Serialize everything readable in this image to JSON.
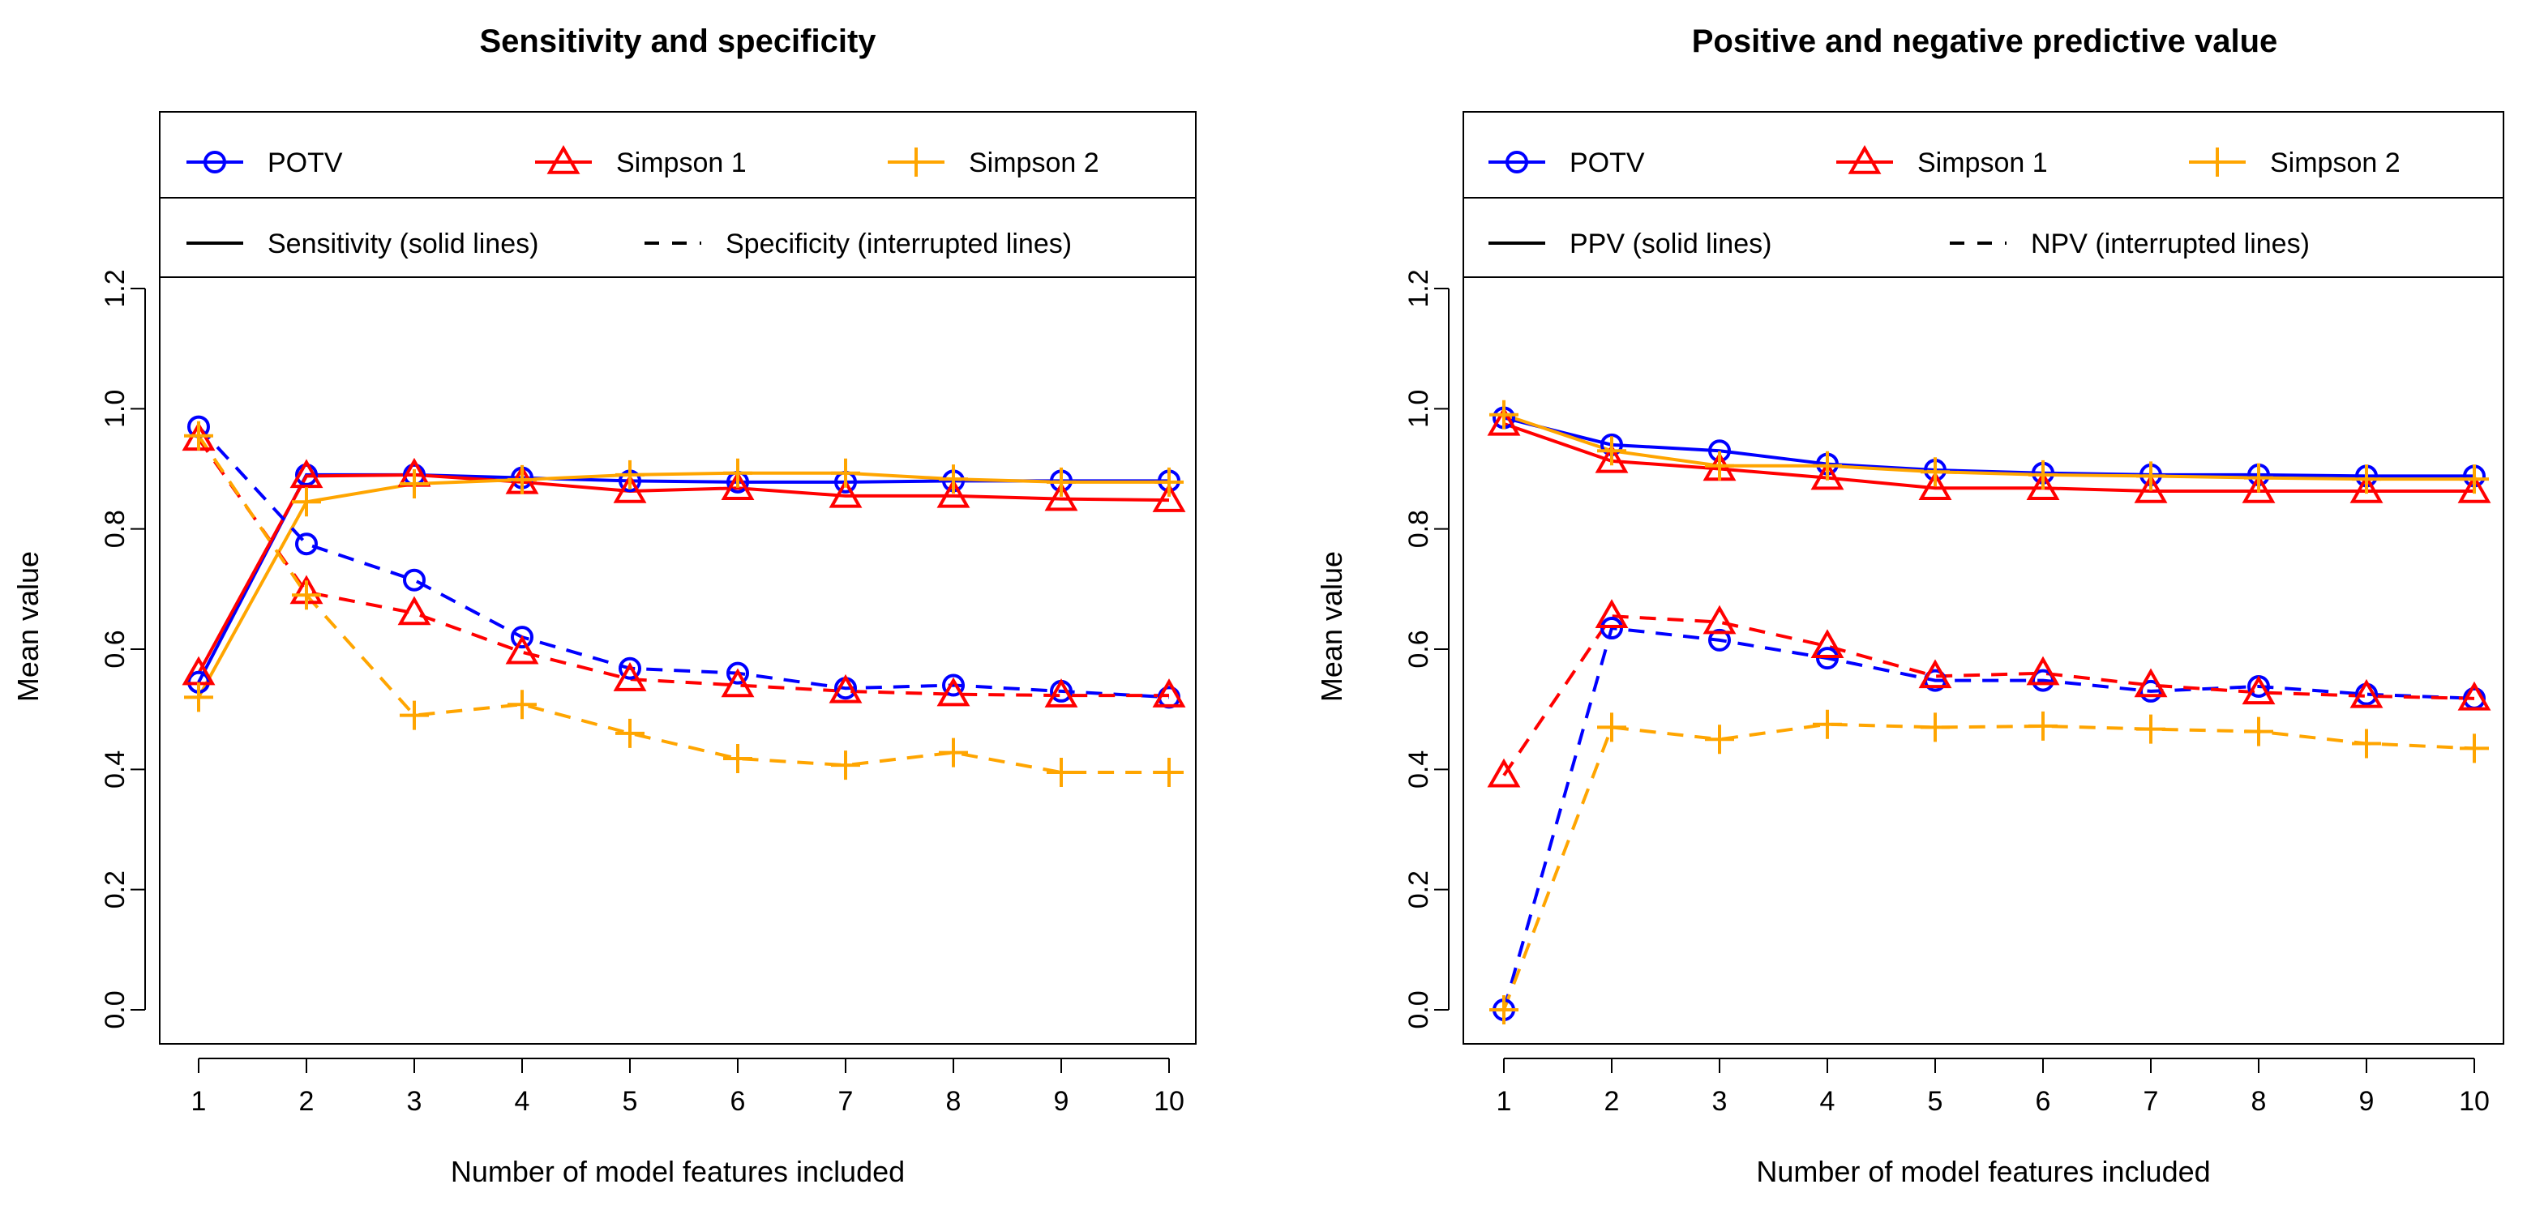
{
  "colors": {
    "potv": "#0000FF",
    "simpson1": "#FF0000",
    "simpson2": "#FFA500",
    "axis": "#000000"
  },
  "chart_data": [
    {
      "type": "line",
      "title": "Sensitivity and specificity",
      "xlabel": "Number of model features included",
      "ylabel": "Mean value",
      "x": [
        1,
        2,
        3,
        4,
        5,
        6,
        7,
        8,
        9,
        10
      ],
      "xlim": [
        1,
        10
      ],
      "ylim": [
        0,
        1.2
      ],
      "yticks": [
        "0.0",
        "0.2",
        "0.4",
        "0.6",
        "0.8",
        "1.0",
        "1.2"
      ],
      "legend": {
        "placement": "top",
        "series_labels": [
          "POTV",
          "Simpson 1",
          "Simpson 2"
        ],
        "linetype_labels": [
          "Sensitivity (solid lines)",
          "Specificity (interrupted lines)"
        ]
      },
      "series": [
        {
          "name": "POTV",
          "measure": "Sensitivity",
          "line": "solid",
          "marker": "circle",
          "color": "#0000FF",
          "values": [
            0.545,
            0.89,
            0.89,
            0.885,
            0.88,
            0.878,
            0.878,
            0.88,
            0.88,
            0.88
          ]
        },
        {
          "name": "Simpson 1",
          "measure": "Sensitivity",
          "line": "solid",
          "marker": "triangle",
          "color": "#FF0000",
          "values": [
            0.56,
            0.888,
            0.89,
            0.878,
            0.863,
            0.868,
            0.855,
            0.855,
            0.85,
            0.848
          ]
        },
        {
          "name": "Simpson 2",
          "measure": "Sensitivity",
          "line": "solid",
          "marker": "plus",
          "color": "#FFA500",
          "values": [
            0.52,
            0.845,
            0.875,
            0.882,
            0.89,
            0.893,
            0.893,
            0.883,
            0.878,
            0.878
          ]
        },
        {
          "name": "POTV",
          "measure": "Specificity",
          "line": "dashed",
          "marker": "circle",
          "color": "#0000FF",
          "values": [
            0.97,
            0.775,
            0.715,
            0.62,
            0.568,
            0.56,
            0.535,
            0.54,
            0.53,
            0.52
          ]
        },
        {
          "name": "Simpson 1",
          "measure": "Specificity",
          "line": "dashed",
          "marker": "triangle",
          "color": "#FF0000",
          "values": [
            0.95,
            0.695,
            0.66,
            0.595,
            0.55,
            0.54,
            0.53,
            0.525,
            0.523,
            0.523
          ]
        },
        {
          "name": "Simpson 2",
          "measure": "Specificity",
          "line": "dashed",
          "marker": "plus",
          "color": "#FFA500",
          "values": [
            0.955,
            0.69,
            0.49,
            0.508,
            0.46,
            0.418,
            0.407,
            0.428,
            0.395,
            0.395
          ]
        }
      ]
    },
    {
      "type": "line",
      "title": "Positive and negative predictive value",
      "xlabel": "Number of model features included",
      "ylabel": "Mean value",
      "x": [
        1,
        2,
        3,
        4,
        5,
        6,
        7,
        8,
        9,
        10
      ],
      "xlim": [
        1,
        10
      ],
      "ylim": [
        0,
        1.2
      ],
      "yticks": [
        "0.0",
        "0.2",
        "0.4",
        "0.6",
        "0.8",
        "1.0",
        "1.2"
      ],
      "legend": {
        "placement": "top",
        "series_labels": [
          "POTV",
          "Simpson 1",
          "Simpson 2"
        ],
        "linetype_labels": [
          "PPV (solid lines)",
          "NPV (interrupted lines)"
        ]
      },
      "series": [
        {
          "name": "POTV",
          "measure": "PPV",
          "line": "solid",
          "marker": "circle",
          "color": "#0000FF",
          "values": [
            0.985,
            0.94,
            0.93,
            0.908,
            0.898,
            0.893,
            0.89,
            0.89,
            0.888,
            0.888
          ]
        },
        {
          "name": "Simpson 1",
          "measure": "PPV",
          "line": "solid",
          "marker": "triangle",
          "color": "#FF0000",
          "values": [
            0.975,
            0.913,
            0.9,
            0.885,
            0.868,
            0.868,
            0.863,
            0.863,
            0.863,
            0.863
          ]
        },
        {
          "name": "Simpson 2",
          "measure": "PPV",
          "line": "solid",
          "marker": "plus",
          "color": "#FFA500",
          "values": [
            0.99,
            0.93,
            0.905,
            0.905,
            0.895,
            0.89,
            0.888,
            0.885,
            0.883,
            0.883
          ]
        },
        {
          "name": "POTV",
          "measure": "NPV",
          "line": "dashed",
          "marker": "circle",
          "color": "#0000FF",
          "values": [
            0.0,
            0.635,
            0.615,
            0.585,
            0.548,
            0.548,
            0.53,
            0.538,
            0.525,
            0.518
          ]
        },
        {
          "name": "Simpson 1",
          "measure": "NPV",
          "line": "dashed",
          "marker": "triangle",
          "color": "#FF0000",
          "values": [
            0.39,
            0.655,
            0.645,
            0.605,
            0.555,
            0.56,
            0.54,
            0.528,
            0.522,
            0.518
          ]
        },
        {
          "name": "Simpson 2",
          "measure": "NPV",
          "line": "dashed",
          "marker": "plus",
          "color": "#FFA500",
          "values": [
            0.0,
            0.47,
            0.45,
            0.475,
            0.47,
            0.472,
            0.467,
            0.463,
            0.443,
            0.435
          ]
        }
      ]
    }
  ]
}
